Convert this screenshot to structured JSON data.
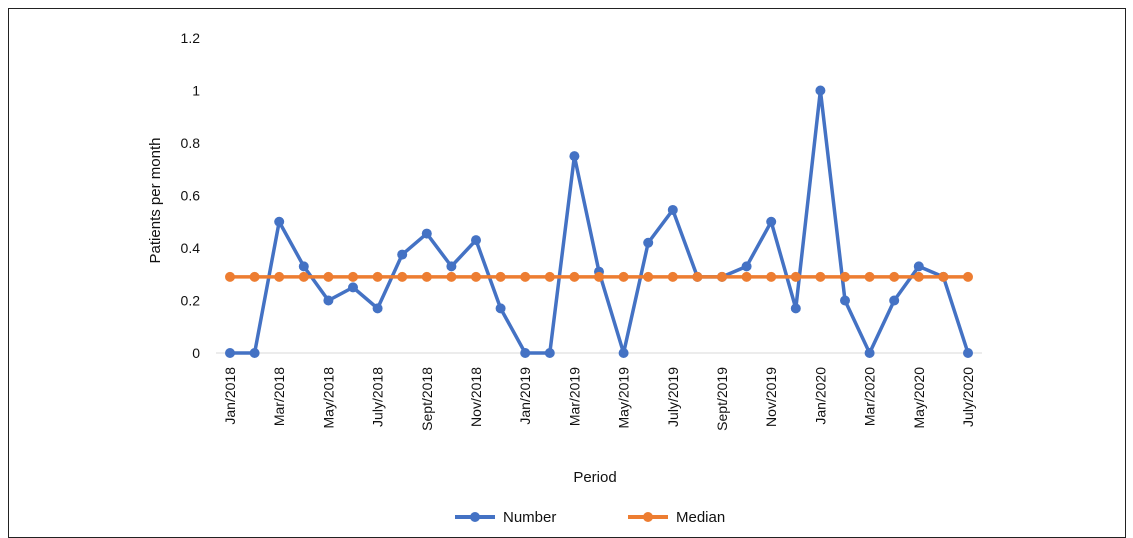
{
  "chart_data": {
    "type": "line",
    "title": "",
    "xlabel": "Period",
    "ylabel": "Patients per month",
    "ylim": [
      0,
      1.2
    ],
    "yticks": [
      "0",
      "0.2",
      "0.4",
      "0.6",
      "0.8",
      "1",
      "1.2"
    ],
    "x_tick_labels": [
      "Jan/2018",
      "Mar/2018",
      "May/2018",
      "July/2018",
      "Sept/2018",
      "Nov/2018",
      "Jan/2019",
      "Mar/2019",
      "May/2019",
      "July/2019",
      "Sept/2019",
      "Nov/2019",
      "Jan/2020",
      "Mar/2020",
      "May/2020",
      "July/2020"
    ],
    "x_tick_every": 2,
    "num_points": 31,
    "grid": false,
    "legend_placement": "bottom-center",
    "series": [
      {
        "name": "Number",
        "color": "#4472C4",
        "values": [
          0,
          0,
          0.5,
          0.33,
          0.2,
          0.25,
          0.17,
          0.375,
          0.455,
          0.33,
          0.43,
          0.17,
          0,
          0,
          0.75,
          0.31,
          0,
          0.42,
          0.545,
          0.29,
          0.29,
          0.33,
          0.5,
          0.17,
          1.0,
          0.2,
          0,
          0.2,
          0.33,
          0.29,
          0
        ]
      },
      {
        "name": "Median",
        "color": "#ED7D31",
        "values": [
          0.29,
          0.29,
          0.29,
          0.29,
          0.29,
          0.29,
          0.29,
          0.29,
          0.29,
          0.29,
          0.29,
          0.29,
          0.29,
          0.29,
          0.29,
          0.29,
          0.29,
          0.29,
          0.29,
          0.29,
          0.29,
          0.29,
          0.29,
          0.29,
          0.29,
          0.29,
          0.29,
          0.29,
          0.29,
          0.29,
          0.29
        ]
      }
    ]
  }
}
